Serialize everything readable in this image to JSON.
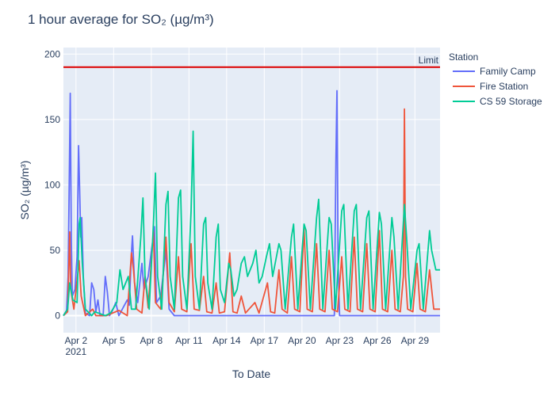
{
  "chart_data": {
    "type": "line",
    "title": "1 hour average for SO₂ (µg/m³)",
    "xlabel": "To Date",
    "ylabel": "SO₂ (µg/m³)",
    "x_start": "2021-04-01",
    "x_end": "2021-05-01",
    "ylim": [
      -13,
      205
    ],
    "y_ticks": [
      0,
      50,
      100,
      150,
      200
    ],
    "x_ticks": [
      {
        "date": "2021-04-02",
        "label": "Apr 2",
        "sub": "2021"
      },
      {
        "date": "2021-04-05",
        "label": "Apr 5"
      },
      {
        "date": "2021-04-08",
        "label": "Apr 8"
      },
      {
        "date": "2021-04-11",
        "label": "Apr 11"
      },
      {
        "date": "2021-04-14",
        "label": "Apr 14"
      },
      {
        "date": "2021-04-17",
        "label": "Apr 17"
      },
      {
        "date": "2021-04-20",
        "label": "Apr 20"
      },
      {
        "date": "2021-04-23",
        "label": "Apr 23"
      },
      {
        "date": "2021-04-26",
        "label": "Apr 26"
      },
      {
        "date": "2021-04-29",
        "label": "Apr 29"
      }
    ],
    "grid": true,
    "legend_title": "Station",
    "legend_position": "right",
    "limit": {
      "value": 190,
      "label": "Limit",
      "color": "#dd0000"
    },
    "series": [
      {
        "name": "Family Camp",
        "color": "#636efa",
        "points": [
          [
            "2021-04-01T00:00",
            0
          ],
          [
            "2021-04-01T06:00",
            4
          ],
          [
            "2021-04-01T09:00",
            30
          ],
          [
            "2021-04-01T11:00",
            100
          ],
          [
            "2021-04-01T13:00",
            170
          ],
          [
            "2021-04-01T15:00",
            60
          ],
          [
            "2021-04-01T17:00",
            15
          ],
          [
            "2021-04-01T22:00",
            20
          ],
          [
            "2021-04-02T02:00",
            45
          ],
          [
            "2021-04-02T05:00",
            130
          ],
          [
            "2021-04-02T07:00",
            95
          ],
          [
            "2021-04-02T09:00",
            60
          ],
          [
            "2021-04-02T11:00",
            75
          ],
          [
            "2021-04-02T14:00",
            30
          ],
          [
            "2021-04-02T18:00",
            2
          ],
          [
            "2021-04-03T02:00",
            0
          ],
          [
            "2021-04-03T06:00",
            25
          ],
          [
            "2021-04-03T10:00",
            20
          ],
          [
            "2021-04-03T14:00",
            3
          ],
          [
            "2021-04-03T18:00",
            12
          ],
          [
            "2021-04-03T22:00",
            0
          ],
          [
            "2021-04-04T04:00",
            0
          ],
          [
            "2021-04-04T08:00",
            30
          ],
          [
            "2021-04-04T12:00",
            18
          ],
          [
            "2021-04-04T16:00",
            0
          ],
          [
            "2021-04-04T22:00",
            4
          ],
          [
            "2021-04-05T04:00",
            10
          ],
          [
            "2021-04-05T10:00",
            0
          ],
          [
            "2021-04-05T18:00",
            6
          ],
          [
            "2021-04-06T02:00",
            12
          ],
          [
            "2021-04-06T06:00",
            8
          ],
          [
            "2021-04-06T10:00",
            48
          ],
          [
            "2021-04-06T12:00",
            61
          ],
          [
            "2021-04-06T16:00",
            25
          ],
          [
            "2021-04-06T22:00",
            10
          ],
          [
            "2021-04-07T06:00",
            40
          ],
          [
            "2021-04-07T10:00",
            20
          ],
          [
            "2021-04-07T18:00",
            30
          ],
          [
            "2021-04-08T06:00",
            68
          ],
          [
            "2021-04-08T10:00",
            10
          ],
          [
            "2021-04-08T18:00",
            15
          ],
          [
            "2021-04-09T04:00",
            50
          ],
          [
            "2021-04-09T10:00",
            5
          ],
          [
            "2021-04-09T20:00",
            0
          ],
          [
            "2021-04-10T08:00",
            0
          ],
          [
            "2021-04-11T12:00",
            0
          ],
          [
            "2021-04-13T00:00",
            0
          ],
          [
            "2021-04-15T00:00",
            0
          ],
          [
            "2021-04-18T00:00",
            0
          ],
          [
            "2021-04-21T00:00",
            0
          ],
          [
            "2021-04-22T14:00",
            0
          ],
          [
            "2021-04-22T17:00",
            120
          ],
          [
            "2021-04-22T19:00",
            172
          ],
          [
            "2021-04-22T21:00",
            40
          ],
          [
            "2021-04-23T00:00",
            0
          ],
          [
            "2021-04-25T00:00",
            0
          ],
          [
            "2021-04-28T00:00",
            0
          ],
          [
            "2021-05-01T00:00",
            0
          ]
        ]
      },
      {
        "name": "Fire Station",
        "color": "#ef553b",
        "points": [
          [
            "2021-04-01T00:00",
            0
          ],
          [
            "2021-04-01T08:00",
            3
          ],
          [
            "2021-04-01T12:00",
            64
          ],
          [
            "2021-04-01T14:00",
            20
          ],
          [
            "2021-04-01T20:00",
            5
          ],
          [
            "2021-04-02T06:00",
            42
          ],
          [
            "2021-04-02T10:00",
            15
          ],
          [
            "2021-04-02T18:00",
            0
          ],
          [
            "2021-04-03T08:00",
            5
          ],
          [
            "2021-04-03T14:00",
            0
          ],
          [
            "2021-04-04T10:00",
            0
          ],
          [
            "2021-04-05T10:00",
            4
          ],
          [
            "2021-04-06T02:00",
            0
          ],
          [
            "2021-04-06T10:00",
            48
          ],
          [
            "2021-04-06T14:00",
            35
          ],
          [
            "2021-04-06T20:00",
            5
          ],
          [
            "2021-04-07T06:00",
            2
          ],
          [
            "2021-04-07T12:00",
            30
          ],
          [
            "2021-04-07T18:00",
            6
          ],
          [
            "2021-04-08T04:00",
            65
          ],
          [
            "2021-04-08T08:00",
            10
          ],
          [
            "2021-04-08T18:00",
            5
          ],
          [
            "2021-04-09T04:00",
            60
          ],
          [
            "2021-04-09T10:00",
            10
          ],
          [
            "2021-04-09T20:00",
            3
          ],
          [
            "2021-04-10T04:00",
            45
          ],
          [
            "2021-04-10T10:00",
            5
          ],
          [
            "2021-04-10T20:00",
            3
          ],
          [
            "2021-04-11T04:00",
            55
          ],
          [
            "2021-04-11T10:00",
            5
          ],
          [
            "2021-04-11T20:00",
            4
          ],
          [
            "2021-04-12T04:00",
            30
          ],
          [
            "2021-04-12T10:00",
            3
          ],
          [
            "2021-04-12T20:00",
            2
          ],
          [
            "2021-04-13T04:00",
            25
          ],
          [
            "2021-04-13T10:00",
            2
          ],
          [
            "2021-04-13T20:00",
            3
          ],
          [
            "2021-04-14T06:00",
            48
          ],
          [
            "2021-04-14T12:00",
            3
          ],
          [
            "2021-04-14T20:00",
            2
          ],
          [
            "2021-04-15T04:00",
            15
          ],
          [
            "2021-04-15T12:00",
            2
          ],
          [
            "2021-04-16T06:00",
            10
          ],
          [
            "2021-04-16T14:00",
            2
          ],
          [
            "2021-04-17T06:00",
            25
          ],
          [
            "2021-04-17T12:00",
            3
          ],
          [
            "2021-04-17T20:00",
            2
          ],
          [
            "2021-04-18T04:00",
            35
          ],
          [
            "2021-04-18T10:00",
            5
          ],
          [
            "2021-04-18T20:00",
            2
          ],
          [
            "2021-04-19T04:00",
            45
          ],
          [
            "2021-04-19T10:00",
            5
          ],
          [
            "2021-04-19T20:00",
            3
          ],
          [
            "2021-04-20T04:00",
            67
          ],
          [
            "2021-04-20T10:00",
            5
          ],
          [
            "2021-04-20T20:00",
            3
          ],
          [
            "2021-04-21T04:00",
            55
          ],
          [
            "2021-04-21T10:00",
            5
          ],
          [
            "2021-04-21T20:00",
            3
          ],
          [
            "2021-04-22T04:00",
            50
          ],
          [
            "2021-04-22T10:00",
            5
          ],
          [
            "2021-04-22T20:00",
            3
          ],
          [
            "2021-04-23T04:00",
            45
          ],
          [
            "2021-04-23T10:00",
            5
          ],
          [
            "2021-04-23T20:00",
            3
          ],
          [
            "2021-04-24T04:00",
            60
          ],
          [
            "2021-04-24T10:00",
            5
          ],
          [
            "2021-04-24T20:00",
            3
          ],
          [
            "2021-04-25T04:00",
            55
          ],
          [
            "2021-04-25T10:00",
            5
          ],
          [
            "2021-04-25T20:00",
            3
          ],
          [
            "2021-04-26T04:00",
            65
          ],
          [
            "2021-04-26T10:00",
            5
          ],
          [
            "2021-04-26T20:00",
            3
          ],
          [
            "2021-04-27T04:00",
            50
          ],
          [
            "2021-04-27T10:00",
            5
          ],
          [
            "2021-04-27T20:00",
            3
          ],
          [
            "2021-04-28T02:00",
            30
          ],
          [
            "2021-04-28T04:00",
            158
          ],
          [
            "2021-04-28T06:00",
            30
          ],
          [
            "2021-04-28T10:00",
            5
          ],
          [
            "2021-04-28T20:00",
            3
          ],
          [
            "2021-04-29T04:00",
            40
          ],
          [
            "2021-04-29T10:00",
            5
          ],
          [
            "2021-04-29T20:00",
            3
          ],
          [
            "2021-04-30T04:00",
            35
          ],
          [
            "2021-04-30T12:00",
            5
          ],
          [
            "2021-05-01T00:00",
            5
          ]
        ]
      },
      {
        "name": "CS 59 Storage",
        "color": "#00cc96",
        "points": [
          [
            "2021-04-01T00:00",
            0
          ],
          [
            "2021-04-01T08:00",
            5
          ],
          [
            "2021-04-01T12:00",
            25
          ],
          [
            "2021-04-01T18:00",
            12
          ],
          [
            "2021-04-02T02:00",
            10
          ],
          [
            "2021-04-02T06:00",
            70
          ],
          [
            "2021-04-02T08:00",
            75
          ],
          [
            "2021-04-02T12:00",
            40
          ],
          [
            "2021-04-02T18:00",
            5
          ],
          [
            "2021-04-03T06:00",
            0
          ],
          [
            "2021-04-03T12:00",
            3
          ],
          [
            "2021-04-04T08:00",
            0
          ],
          [
            "2021-04-04T18:00",
            2
          ],
          [
            "2021-04-05T06:00",
            10
          ],
          [
            "2021-04-05T12:00",
            35
          ],
          [
            "2021-04-05T18:00",
            20
          ],
          [
            "2021-04-06T04:00",
            30
          ],
          [
            "2021-04-06T10:00",
            5
          ],
          [
            "2021-04-06T18:00",
            5
          ],
          [
            "2021-04-07T04:00",
            60
          ],
          [
            "2021-04-07T08:00",
            90
          ],
          [
            "2021-04-07T12:00",
            30
          ],
          [
            "2021-04-07T20:00",
            5
          ],
          [
            "2021-04-08T04:00",
            70
          ],
          [
            "2021-04-08T08:00",
            109
          ],
          [
            "2021-04-08T12:00",
            30
          ],
          [
            "2021-04-08T20:00",
            5
          ],
          [
            "2021-04-09T04:00",
            85
          ],
          [
            "2021-04-09T08:00",
            95
          ],
          [
            "2021-04-09T12:00",
            30
          ],
          [
            "2021-04-09T20:00",
            5
          ],
          [
            "2021-04-10T04:00",
            90
          ],
          [
            "2021-04-10T08:00",
            96
          ],
          [
            "2021-04-10T12:00",
            30
          ],
          [
            "2021-04-10T20:00",
            5
          ],
          [
            "2021-04-11T04:00",
            80
          ],
          [
            "2021-04-11T08:00",
            141
          ],
          [
            "2021-04-11T12:00",
            30
          ],
          [
            "2021-04-11T20:00",
            5
          ],
          [
            "2021-04-12T04:00",
            70
          ],
          [
            "2021-04-12T08:00",
            75
          ],
          [
            "2021-04-12T12:00",
            25
          ],
          [
            "2021-04-12T20:00",
            5
          ],
          [
            "2021-04-13T04:00",
            60
          ],
          [
            "2021-04-13T08:00",
            70
          ],
          [
            "2021-04-13T12:00",
            20
          ],
          [
            "2021-04-13T20:00",
            10
          ],
          [
            "2021-04-14T04:00",
            40
          ],
          [
            "2021-04-14T08:00",
            35
          ],
          [
            "2021-04-14T14:00",
            15
          ],
          [
            "2021-04-14T20:00",
            20
          ],
          [
            "2021-04-15T04:00",
            40
          ],
          [
            "2021-04-15T10:00",
            45
          ],
          [
            "2021-04-15T16:00",
            30
          ],
          [
            "2021-04-16T02:00",
            40
          ],
          [
            "2021-04-16T08:00",
            50
          ],
          [
            "2021-04-16T14:00",
            25
          ],
          [
            "2021-04-16T20:00",
            30
          ],
          [
            "2021-04-17T04:00",
            45
          ],
          [
            "2021-04-17T10:00",
            55
          ],
          [
            "2021-04-17T16:00",
            30
          ],
          [
            "2021-04-18T04:00",
            55
          ],
          [
            "2021-04-18T08:00",
            50
          ],
          [
            "2021-04-18T16:00",
            5
          ],
          [
            "2021-04-19T04:00",
            60
          ],
          [
            "2021-04-19T08:00",
            70
          ],
          [
            "2021-04-19T16:00",
            5
          ],
          [
            "2021-04-20T04:00",
            70
          ],
          [
            "2021-04-20T08:00",
            65
          ],
          [
            "2021-04-20T16:00",
            5
          ],
          [
            "2021-04-21T04:00",
            75
          ],
          [
            "2021-04-21T08:00",
            89
          ],
          [
            "2021-04-21T16:00",
            5
          ],
          [
            "2021-04-22T04:00",
            75
          ],
          [
            "2021-04-22T08:00",
            70
          ],
          [
            "2021-04-22T16:00",
            5
          ],
          [
            "2021-04-23T04:00",
            80
          ],
          [
            "2021-04-23T08:00",
            85
          ],
          [
            "2021-04-23T16:00",
            5
          ],
          [
            "2021-04-24T04:00",
            80
          ],
          [
            "2021-04-24T08:00",
            85
          ],
          [
            "2021-04-24T16:00",
            5
          ],
          [
            "2021-04-25T04:00",
            75
          ],
          [
            "2021-04-25T08:00",
            80
          ],
          [
            "2021-04-25T16:00",
            5
          ],
          [
            "2021-04-26T04:00",
            79
          ],
          [
            "2021-04-26T08:00",
            70
          ],
          [
            "2021-04-26T16:00",
            5
          ],
          [
            "2021-04-27T04:00",
            75
          ],
          [
            "2021-04-27T08:00",
            60
          ],
          [
            "2021-04-27T16:00",
            5
          ],
          [
            "2021-04-28T04:00",
            85
          ],
          [
            "2021-04-28T08:00",
            60
          ],
          [
            "2021-04-28T16:00",
            5
          ],
          [
            "2021-04-29T04:00",
            50
          ],
          [
            "2021-04-29T08:00",
            55
          ],
          [
            "2021-04-29T16:00",
            5
          ],
          [
            "2021-04-30T04:00",
            65
          ],
          [
            "2021-04-30T08:00",
            50
          ],
          [
            "2021-04-30T16:00",
            35
          ],
          [
            "2021-05-01T00:00",
            35
          ]
        ]
      }
    ]
  }
}
